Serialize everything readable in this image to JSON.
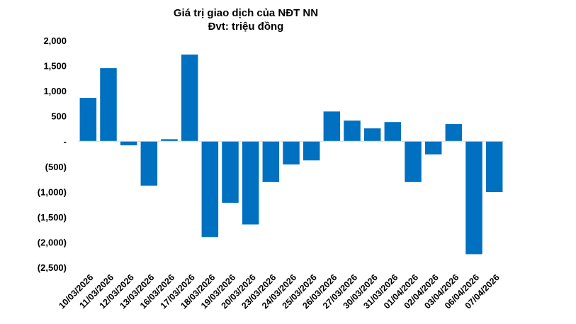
{
  "chart_data": {
    "type": "bar",
    "title": "Giá trị giao dịch của NĐT NN",
    "subtitle": "Đvt: triệu đồng",
    "xlabel": "",
    "ylabel": "",
    "ylim": [
      -2500,
      2000
    ],
    "yticks": [
      2000,
      1500,
      1000,
      500,
      0,
      -500,
      -1000,
      -1500,
      -2000,
      -2500
    ],
    "ytick_labels": [
      "2,000",
      "1,500",
      "1,000",
      "500",
      "-",
      "(500)",
      "(1,000)",
      "(1,500)",
      "(2,000)",
      "(2,500)"
    ],
    "grid": false,
    "legend": "none",
    "bar_color": "#0070C0",
    "categories": [
      "10/03/2026",
      "11/03/2026",
      "12/03/2026",
      "13/03/2026",
      "16/03/2026",
      "17/03/2026",
      "18/03/2026",
      "19/03/2026",
      "20/03/2026",
      "23/03/2026",
      "24/03/2026",
      "25/03/2026",
      "26/03/2026",
      "27/03/2026",
      "30/03/2026",
      "31/03/2026",
      "01/04/2026",
      "02/04/2026",
      "03/04/2026",
      "06/04/2026",
      "07/04/2026"
    ],
    "values": [
      860,
      1450,
      -80,
      -880,
      40,
      1720,
      -1900,
      -1220,
      -1650,
      -810,
      -460,
      -380,
      590,
      410,
      255,
      380,
      -810,
      -260,
      340,
      -2240,
      -1010
    ]
  }
}
